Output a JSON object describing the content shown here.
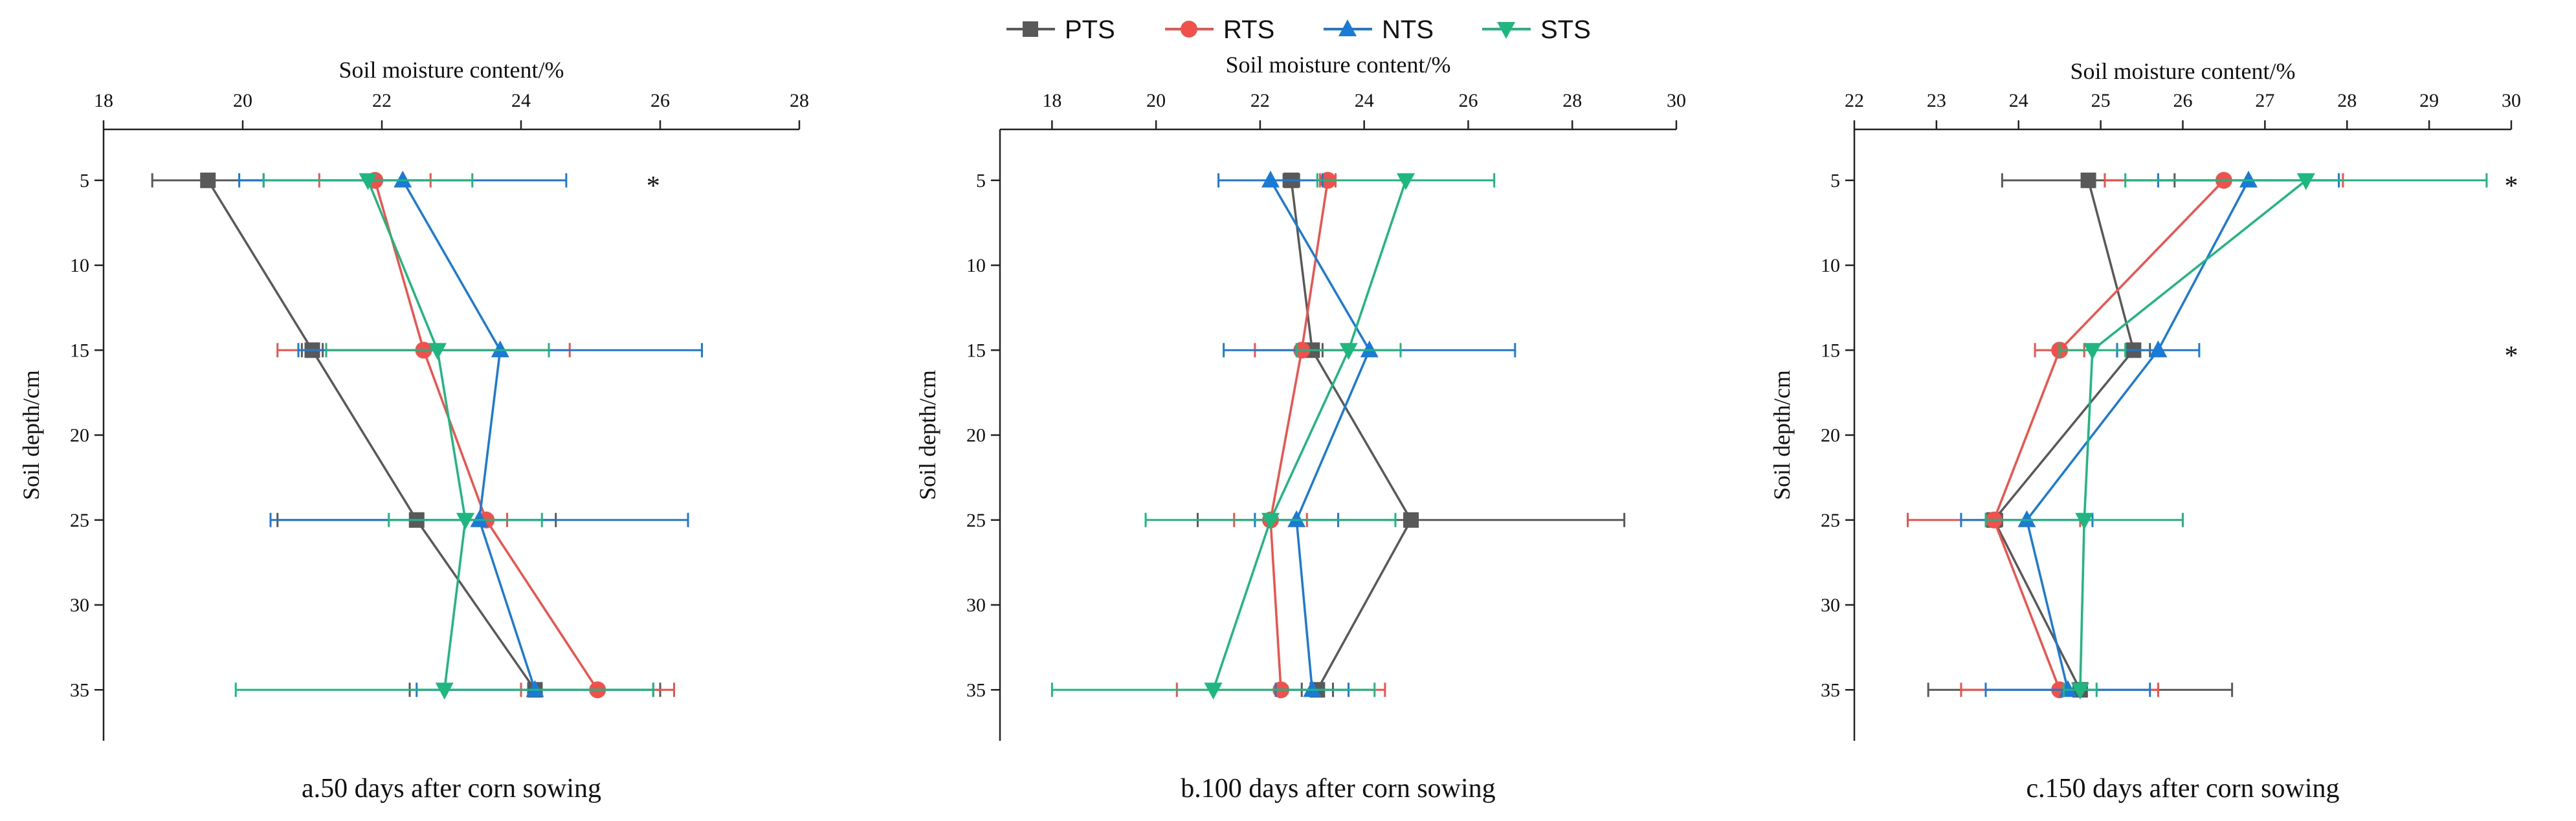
{
  "legend": [
    {
      "name": "PTS",
      "color": "#595959",
      "marker": "square"
    },
    {
      "name": "RTS",
      "color": "#f0524b",
      "marker": "circle"
    },
    {
      "name": "NTS",
      "color": "#1a7bd6",
      "marker": "triangle-up"
    },
    {
      "name": "STS",
      "color": "#1db77f",
      "marker": "triangle-down"
    }
  ],
  "chart_data": [
    {
      "type": "line",
      "caption": "a.50 days after corn sowing",
      "xlabel": "Soil moisture content/%",
      "ylabel": "Soil depth/cm",
      "xlim": [
        18,
        28
      ],
      "xticks": [
        18,
        20,
        22,
        24,
        26,
        28
      ],
      "ylim": [
        38,
        2
      ],
      "yticks": [
        5,
        10,
        15,
        20,
        25,
        30,
        35
      ],
      "depths": [
        5,
        15,
        25,
        35
      ],
      "significance": [
        {
          "depth": 5,
          "x": 25.9,
          "label": "*"
        }
      ],
      "series": [
        {
          "name": "PTS",
          "values": [
            19.5,
            21.0,
            22.5,
            24.2
          ],
          "errors": [
            0.8,
            0.15,
            2.0,
            1.8
          ]
        },
        {
          "name": "RTS",
          "values": [
            21.9,
            22.6,
            23.5,
            25.1
          ],
          "errors": [
            0.8,
            2.1,
            0.3,
            1.1
          ]
        },
        {
          "name": "NTS",
          "values": [
            22.3,
            23.7,
            23.4,
            24.2
          ],
          "errors": [
            2.35,
            2.9,
            3.0,
            1.7
          ]
        },
        {
          "name": "STS",
          "values": [
            21.8,
            22.8,
            23.2,
            22.9
          ],
          "errors": [
            1.5,
            1.6,
            1.1,
            3.0
          ]
        }
      ]
    },
    {
      "type": "line",
      "caption": "b.100 days after corn sowing",
      "xlabel": "Soil moisture content/%",
      "ylabel": "Soil depth/cm",
      "xlim": [
        17,
        30
      ],
      "xticks": [
        18,
        20,
        22,
        24,
        26,
        28,
        30
      ],
      "ylim": [
        38,
        2
      ],
      "yticks": [
        5,
        10,
        15,
        20,
        25,
        30,
        35
      ],
      "depths": [
        5,
        15,
        25,
        35
      ],
      "significance": [],
      "series": [
        {
          "name": "PTS",
          "values": [
            22.6,
            23.0,
            24.9,
            23.1
          ],
          "errors": [
            0.15,
            0.2,
            4.1,
            0.3
          ]
        },
        {
          "name": "RTS",
          "values": [
            23.3,
            22.8,
            22.2,
            22.4
          ],
          "errors": [
            0.15,
            0.9,
            0.7,
            2.0
          ]
        },
        {
          "name": "NTS",
          "values": [
            22.2,
            24.1,
            22.7,
            23.0
          ],
          "errors": [
            1.0,
            2.8,
            0.8,
            0.7
          ]
        },
        {
          "name": "STS",
          "values": [
            24.8,
            23.7,
            22.2,
            21.1
          ],
          "errors": [
            1.7,
            1.0,
            2.4,
            3.1
          ]
        }
      ]
    },
    {
      "type": "line",
      "caption": "c.150 days after corn sowing",
      "xlabel": "Soil moisture content/%",
      "ylabel": "Soil depth/cm",
      "xlim": [
        22,
        30
      ],
      "xticks": [
        22,
        23,
        24,
        25,
        26,
        27,
        28,
        29,
        30
      ],
      "ylim": [
        38,
        2
      ],
      "yticks": [
        5,
        10,
        15,
        20,
        25,
        30,
        35
      ],
      "depths": [
        5,
        15,
        25,
        35
      ],
      "significance": [
        {
          "depth": 5,
          "x": 30.0,
          "label": "*"
        },
        {
          "depth": 15,
          "x": 30.0,
          "label": "*"
        }
      ],
      "series": [
        {
          "name": "PTS",
          "values": [
            24.85,
            25.4,
            23.7,
            24.75
          ],
          "errors": [
            1.05,
            0.2,
            0.1,
            1.85
          ]
        },
        {
          "name": "RTS",
          "values": [
            26.5,
            24.5,
            23.7,
            24.5
          ],
          "errors": [
            1.45,
            0.3,
            1.05,
            1.2
          ]
        },
        {
          "name": "NTS",
          "values": [
            26.8,
            25.7,
            24.1,
            24.6
          ],
          "errors": [
            1.1,
            0.5,
            0.8,
            1.0
          ]
        },
        {
          "name": "STS",
          "values": [
            27.5,
            24.9,
            24.8,
            24.75
          ],
          "errors": [
            2.2,
            0.4,
            1.2,
            0.2
          ]
        }
      ]
    }
  ]
}
